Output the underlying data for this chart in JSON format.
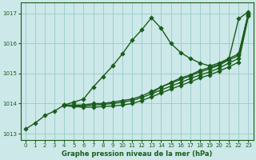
{
  "title": "Graphe pression niveau de la mer (hPa)",
  "bg_color": "#cce8e8",
  "grid_color": "#99cccc",
  "line_color": "#1a5c1a",
  "marker_color": "#1a5c1a",
  "xlim": [
    -0.5,
    23.5
  ],
  "ylim": [
    1012.8,
    1017.35
  ],
  "yticks": [
    1013,
    1014,
    1015,
    1016,
    1017
  ],
  "xticks": [
    0,
    1,
    2,
    3,
    4,
    5,
    6,
    7,
    8,
    9,
    10,
    11,
    12,
    13,
    14,
    15,
    16,
    17,
    18,
    19,
    20,
    21,
    22,
    23
  ],
  "lines": [
    {
      "x": [
        0,
        1,
        2,
        3,
        4,
        5,
        6,
        7,
        8,
        9,
        10,
        11,
        12,
        13,
        14,
        15,
        16,
        17,
        18,
        19,
        20,
        21,
        22,
        23
      ],
      "y": [
        1013.15,
        1013.35,
        1013.6,
        1013.75,
        1013.95,
        1014.05,
        1014.15,
        1014.55,
        1014.9,
        1015.25,
        1015.65,
        1016.1,
        1016.45,
        1016.85,
        1016.5,
        1016.0,
        1015.7,
        1015.5,
        1015.35,
        1015.25,
        1015.35,
        1015.5,
        1016.82,
        1017.05
      ],
      "marker": "D",
      "markersize": 2.8,
      "linewidth": 1.0,
      "linestyle": "-"
    },
    {
      "x": [
        4,
        5,
        6,
        7,
        8,
        9,
        10,
        11,
        12,
        13,
        14,
        15,
        16,
        17,
        18,
        19,
        20,
        21,
        22,
        23
      ],
      "y": [
        1013.95,
        1013.95,
        1013.95,
        1014.0,
        1014.0,
        1014.05,
        1014.1,
        1014.15,
        1014.25,
        1014.4,
        1014.55,
        1014.7,
        1014.85,
        1014.95,
        1015.1,
        1015.2,
        1015.3,
        1015.5,
        1015.65,
        1017.0
      ],
      "marker": "D",
      "markersize": 2.8,
      "linewidth": 1.0,
      "linestyle": "-"
    },
    {
      "x": [
        4,
        5,
        6,
        7,
        8,
        9,
        10,
        11,
        12,
        13,
        14,
        15,
        16,
        17,
        18,
        19,
        20,
        21,
        22,
        23
      ],
      "y": [
        1013.95,
        1013.93,
        1013.92,
        1013.95,
        1013.97,
        1014.0,
        1014.05,
        1014.1,
        1014.2,
        1014.32,
        1014.45,
        1014.58,
        1014.7,
        1014.83,
        1014.95,
        1015.05,
        1015.18,
        1015.35,
        1015.5,
        1016.95
      ],
      "marker": "D",
      "markersize": 2.8,
      "linewidth": 1.0,
      "linestyle": "-"
    },
    {
      "x": [
        4,
        5,
        6,
        7,
        8,
        9,
        10,
        11,
        12,
        13,
        14,
        15,
        16,
        17,
        18,
        19,
        20,
        21,
        22,
        23
      ],
      "y": [
        1013.93,
        1013.9,
        1013.88,
        1013.88,
        1013.9,
        1013.92,
        1013.95,
        1014.0,
        1014.1,
        1014.22,
        1014.35,
        1014.48,
        1014.6,
        1014.72,
        1014.85,
        1014.95,
        1015.08,
        1015.22,
        1015.38,
        1016.9
      ],
      "marker": "D",
      "markersize": 2.8,
      "linewidth": 1.0,
      "linestyle": "-"
    },
    {
      "x": [
        13,
        14,
        15,
        16,
        17,
        18,
        19,
        20,
        21,
        22,
        23
      ],
      "y": [
        1014.35,
        1014.55,
        1014.68,
        1014.8,
        1014.92,
        1015.05,
        1015.15,
        1015.28,
        1015.45,
        1015.6,
        1017.0
      ],
      "marker": "D",
      "markersize": 2.8,
      "linewidth": 1.0,
      "linestyle": "-"
    }
  ]
}
